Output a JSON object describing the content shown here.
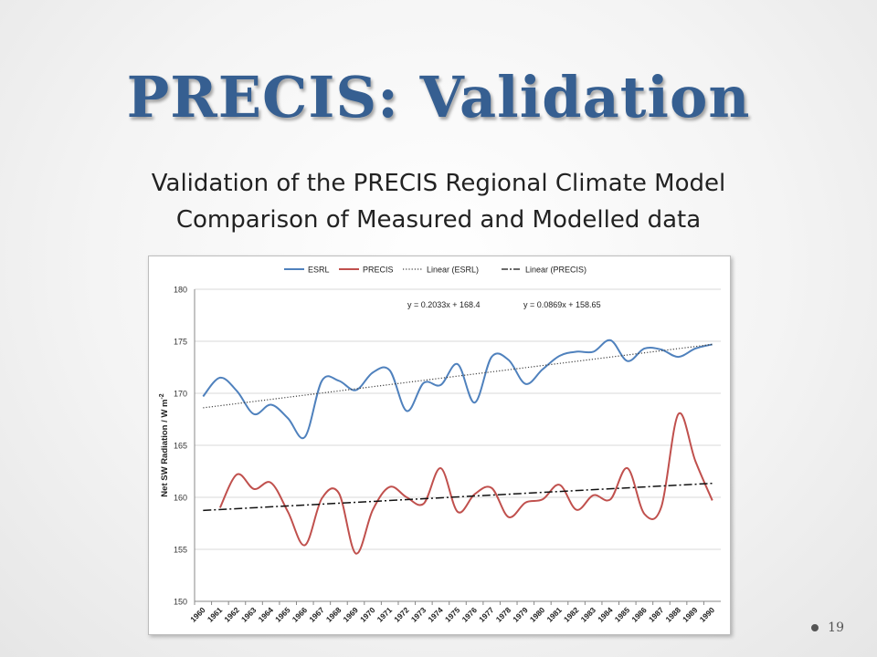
{
  "slide": {
    "title": "PRECIS: Validation",
    "subtitle_line1": "Validation of the PRECIS Regional Climate Model",
    "subtitle_line2": "Comparison of Measured and Modelled data",
    "page_number": "19"
  },
  "chart_data": {
    "type": "line",
    "ylabel": "Net SW Radiation / W m",
    "ylabel_superscript": "-2",
    "xlabel": "",
    "ylim": [
      150,
      180
    ],
    "yticks": [
      150,
      155,
      160,
      165,
      170,
      175,
      180
    ],
    "grid": true,
    "legend_position": "top",
    "categories": [
      "1960",
      "1961",
      "1962",
      "1963",
      "1964",
      "1965",
      "1966",
      "1967",
      "1968",
      "1969",
      "1970",
      "1971",
      "1972",
      "1973",
      "1974",
      "1975",
      "1976",
      "1977",
      "1978",
      "1979",
      "1980",
      "1981",
      "1982",
      "1983",
      "1984",
      "1985",
      "1986",
      "1987",
      "1988",
      "1989",
      "1990"
    ],
    "series": [
      {
        "name": "ESRL",
        "color": "#4f81bd",
        "style": "solid",
        "values": [
          169.7,
          171.5,
          170.2,
          168.0,
          168.9,
          167.6,
          165.8,
          171.2,
          171.2,
          170.3,
          172.0,
          172.2,
          168.3,
          171.0,
          170.8,
          172.8,
          169.1,
          173.5,
          173.2,
          170.9,
          172.3,
          173.6,
          174.0,
          174.0,
          175.1,
          173.1,
          174.3,
          174.2,
          173.5,
          174.3,
          174.7
        ]
      },
      {
        "name": "PRECIS",
        "color": "#c0504d",
        "style": "solid",
        "start_index": 1,
        "values": [
          null,
          159.0,
          162.2,
          160.8,
          161.4,
          158.6,
          155.4,
          159.9,
          160.4,
          154.6,
          158.8,
          161.0,
          160.0,
          159.4,
          162.8,
          158.6,
          160.3,
          160.9,
          158.1,
          159.5,
          159.8,
          161.2,
          158.8,
          160.2,
          159.8,
          162.8,
          158.4,
          159.1,
          168.0,
          163.5,
          159.7
        ]
      },
      {
        "name": "Linear (ESRL)",
        "color": "#404040",
        "style": "dotted",
        "slope": 0.2033,
        "intercept": 168.4
      },
      {
        "name": "Linear (PRECIS)",
        "color": "#111111",
        "style": "dashdot",
        "slope": 0.0869,
        "intercept": 158.65
      }
    ],
    "annotations": [
      {
        "text": "y = 0.2033x + 168.4"
      },
      {
        "text": "y = 0.0869x + 158.65"
      }
    ]
  }
}
